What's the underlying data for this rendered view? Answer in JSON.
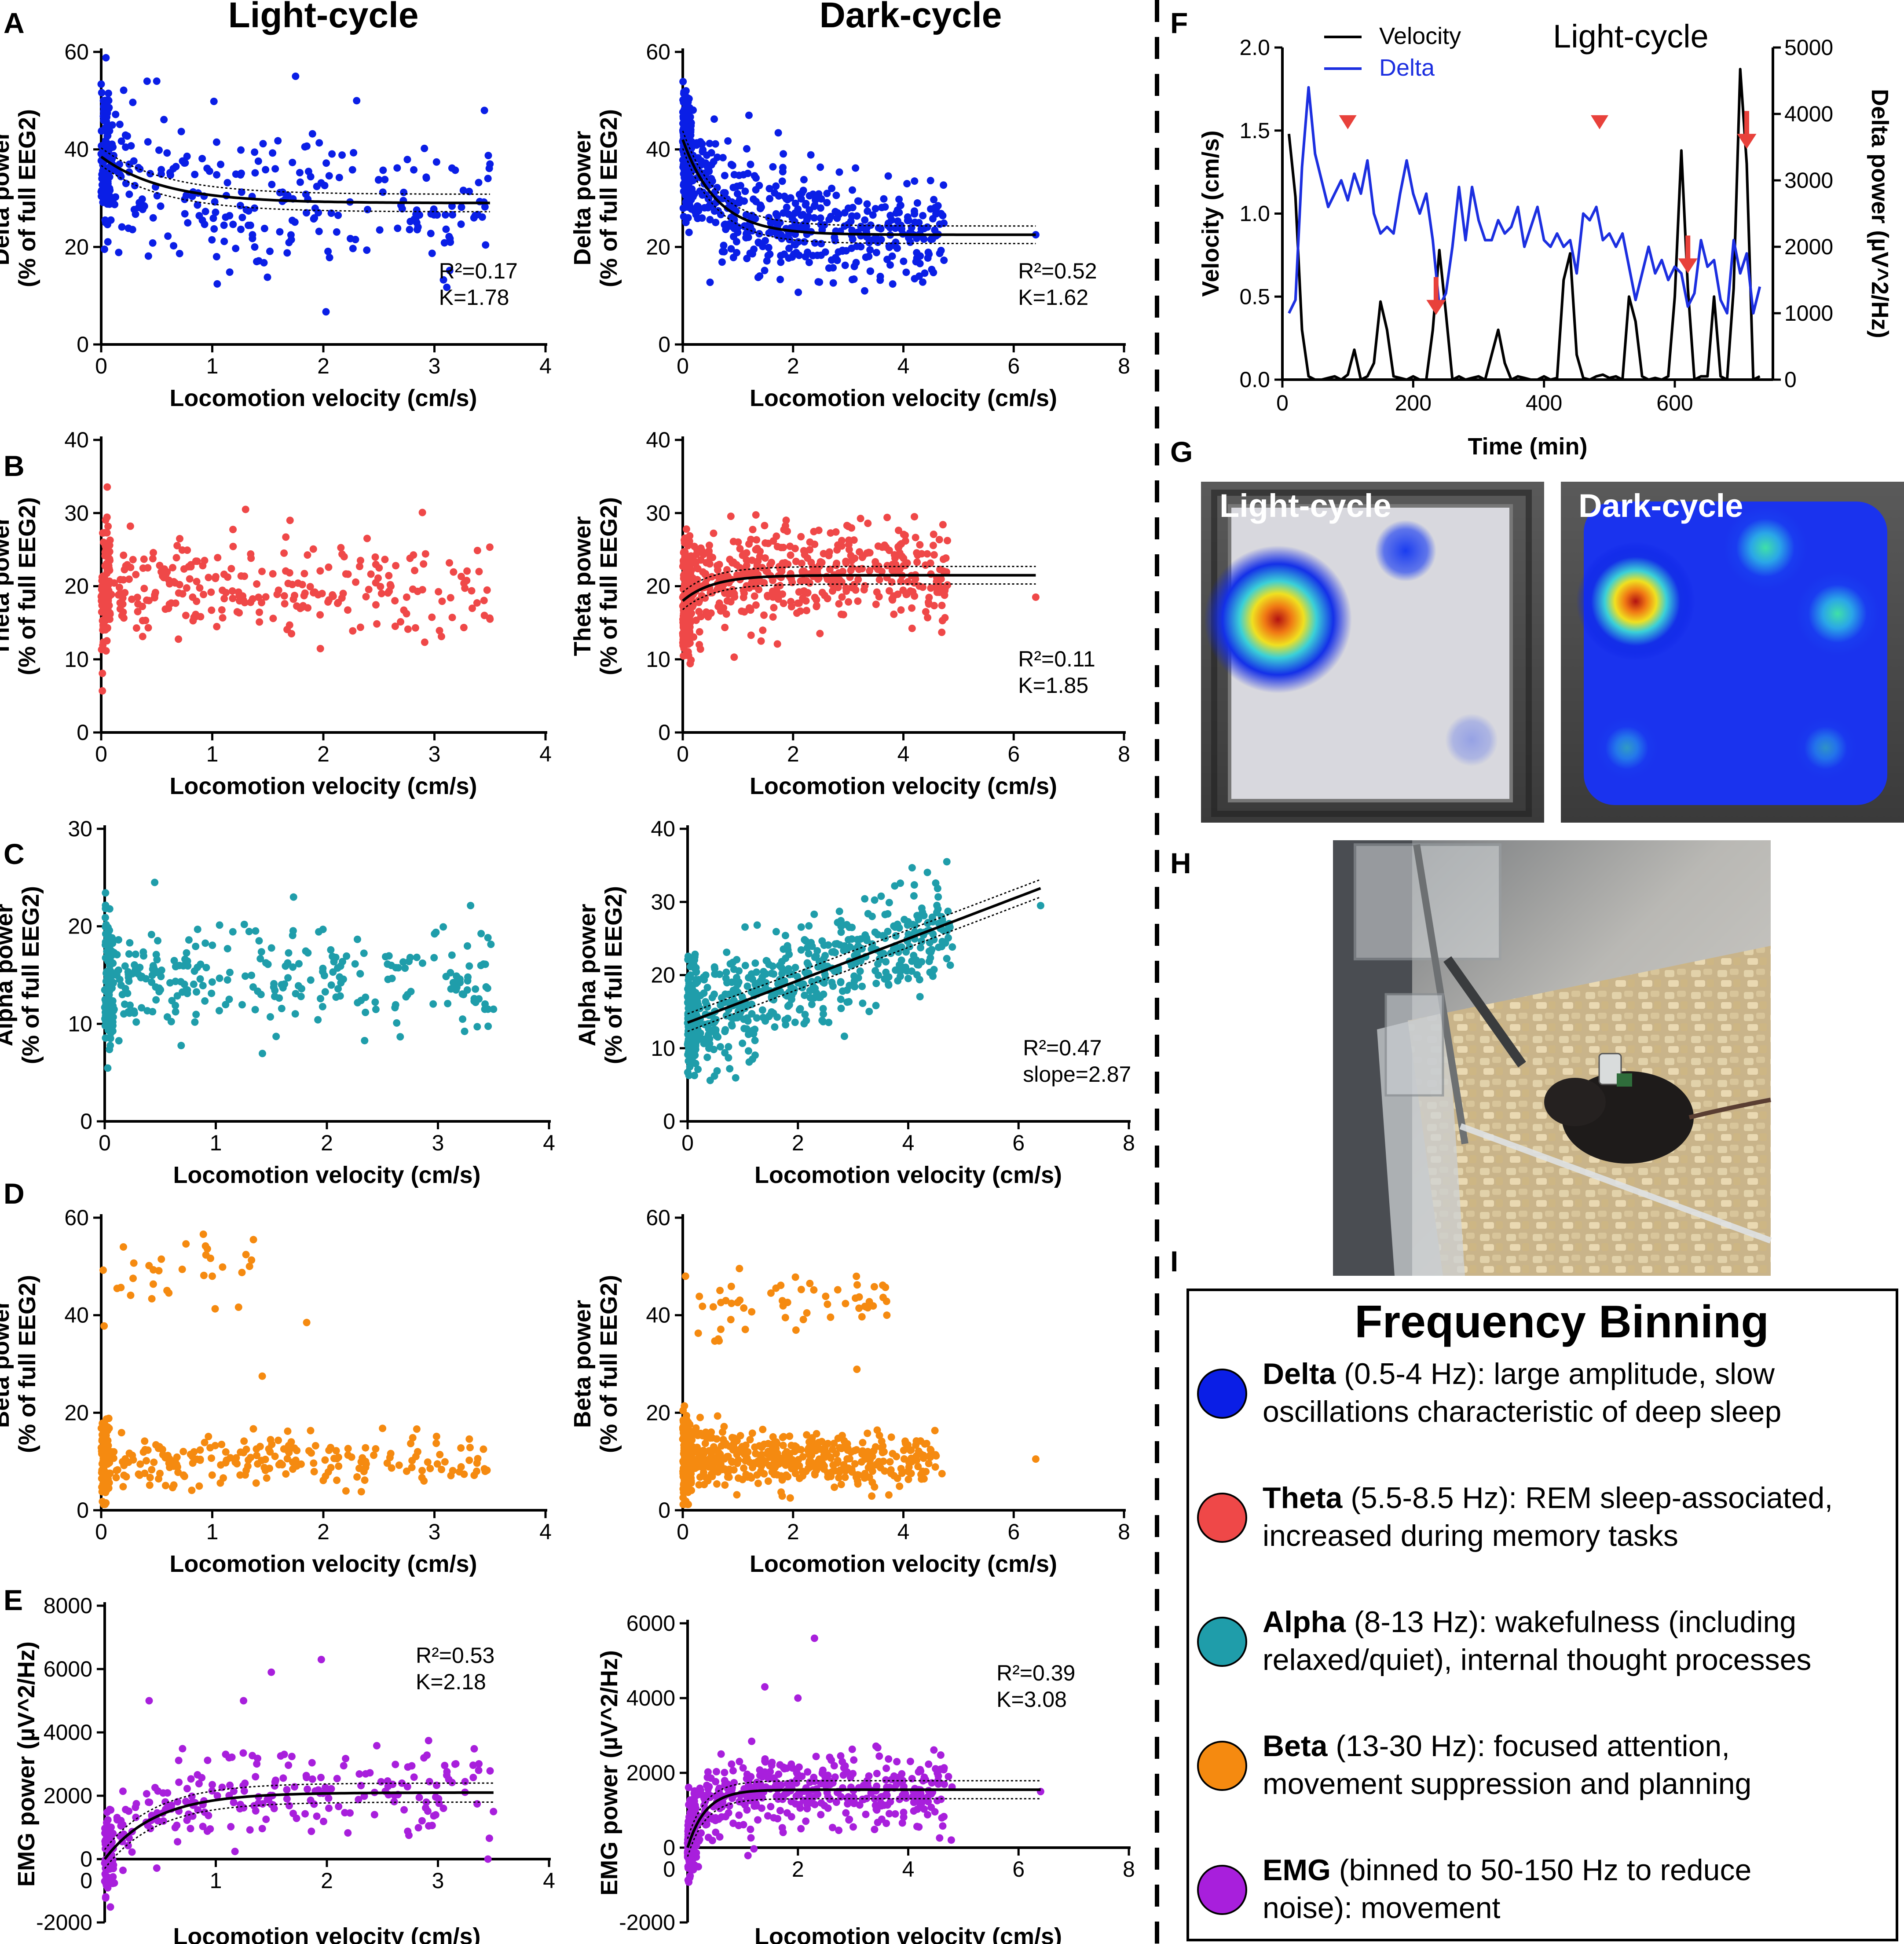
{
  "columns": {
    "light": "Light-cycle",
    "dark": "Dark-cycle"
  },
  "panel_letters": {
    "A": "A",
    "B": "B",
    "C": "C",
    "D": "D",
    "E": "E",
    "F": "F",
    "G": "G",
    "H": "H",
    "I": "I"
  },
  "colors": {
    "delta": "#0a1ee6",
    "theta": "#ef4848",
    "alpha": "#1f9daa",
    "beta": "#f58a10",
    "emg": "#a81fdc",
    "arrow": "#e8413b"
  },
  "chart_data": [
    {
      "id": "A_light",
      "type": "scatter",
      "panel": "A",
      "column": "Light-cycle",
      "color_key": "delta",
      "title": "Light-cycle",
      "xlabel": "Locomotion velocity (cm/s)",
      "ylabel": [
        "Delta power",
        "(% of full EEG2)"
      ],
      "xlim": [
        0,
        4
      ],
      "ylim": [
        0,
        60
      ],
      "xticks": [
        0,
        1,
        2,
        3,
        4
      ],
      "yticks": [
        0,
        20,
        40,
        60
      ],
      "fit": {
        "kind": "exp",
        "y0": 38.5,
        "plateau": 29,
        "K": 1.78
      },
      "annotation": [
        "R²=0.17",
        "K=1.78"
      ],
      "seed": 11,
      "n": 360,
      "cloud": {
        "xmax": 3.5,
        "spread": 7.5
      },
      "sample_points": [
        [
          0.02,
          50
        ],
        [
          0.1,
          45
        ],
        [
          0.5,
          54
        ],
        [
          1.75,
          55
        ],
        [
          2.3,
          50
        ],
        [
          3.45,
          48
        ],
        [
          3.5,
          37
        ],
        [
          1.4,
          17
        ]
      ]
    },
    {
      "id": "A_dark",
      "type": "scatter",
      "panel": "A",
      "column": "Dark-cycle",
      "color_key": "delta",
      "title": "Dark-cycle",
      "xlabel": "Locomotion velocity (cm/s)",
      "ylabel": [
        "Delta power",
        "(% of full EEG2)"
      ],
      "xlim": [
        0,
        8
      ],
      "ylim": [
        0,
        60
      ],
      "xticks": [
        0,
        2,
        4,
        6,
        8
      ],
      "yticks": [
        0,
        20,
        40,
        60
      ],
      "fit": {
        "kind": "exp",
        "y0": 42,
        "plateau": 22.5,
        "K": 1.62
      },
      "annotation": [
        "R²=0.52",
        "K=1.62"
      ],
      "seed": 12,
      "n": 700,
      "cloud": {
        "xmax": 4.8,
        "spread": 6
      },
      "sample_points": [
        [
          0.05,
          50
        ],
        [
          1.2,
          47
        ],
        [
          4.6,
          28
        ],
        [
          6.4,
          22.5
        ]
      ]
    },
    {
      "id": "B_light",
      "type": "scatter",
      "panel": "B",
      "column": "Light-cycle",
      "color_key": "theta",
      "xlabel": "Locomotion velocity (cm/s)",
      "ylabel": [
        "Theta power",
        "(% of full EEG2)"
      ],
      "xlim": [
        0,
        4
      ],
      "ylim": [
        0,
        40
      ],
      "xticks": [
        0,
        1,
        2,
        3,
        4
      ],
      "yticks": [
        0,
        10,
        20,
        30,
        40
      ],
      "fit": null,
      "annotation": [],
      "seed": 21,
      "n": 360,
      "cloud": {
        "xmax": 3.5,
        "spread": 3.2,
        "base": 19.5
      },
      "sample_points": [
        [
          1.3,
          30.5
        ],
        [
          1.7,
          29
        ],
        [
          2.75,
          18.5
        ],
        [
          3.45,
          16
        ],
        [
          3.5,
          15.5
        ]
      ]
    },
    {
      "id": "B_dark",
      "type": "scatter",
      "panel": "B",
      "column": "Dark-cycle",
      "color_key": "theta",
      "xlabel": "Locomotion velocity (cm/s)",
      "ylabel": [
        "Theta power",
        "(% of full EEG2)"
      ],
      "xlim": [
        0,
        8
      ],
      "ylim": [
        0,
        40
      ],
      "xticks": [
        0,
        2,
        4,
        6,
        8
      ],
      "yticks": [
        0,
        10,
        20,
        30,
        40
      ],
      "fit": {
        "kind": "exprise",
        "y0": 18,
        "plateau": 21.5,
        "K": 1.85
      },
      "annotation": [
        "R²=0.11",
        "K=1.85"
      ],
      "seed": 22,
      "n": 700,
      "cloud": {
        "xmax": 4.8,
        "spread": 3.3,
        "base": 21
      },
      "sample_points": [
        [
          4.2,
          29.5
        ],
        [
          6.4,
          18.5
        ],
        [
          0.3,
          12
        ]
      ]
    },
    {
      "id": "C_light",
      "type": "scatter",
      "panel": "C",
      "column": "Light-cycle",
      "color_key": "alpha",
      "xlabel": "Locomotion velocity (cm/s)",
      "ylabel": [
        "Alpha power",
        "(% of full EEG2)"
      ],
      "xlim": [
        0,
        4
      ],
      "ylim": [
        0,
        30
      ],
      "xticks": [
        0,
        1,
        2,
        3,
        4
      ],
      "yticks": [
        0,
        10,
        20,
        30
      ],
      "fit": null,
      "annotation": [],
      "seed": 31,
      "n": 360,
      "cloud": {
        "xmax": 3.5,
        "spread": 2.6,
        "base": 14.5
      },
      "sample_points": [
        [
          0.45,
          24.5
        ],
        [
          1.7,
          23
        ],
        [
          2.75,
          16.8
        ],
        [
          3.45,
          11.5
        ],
        [
          3.5,
          11.5
        ]
      ]
    },
    {
      "id": "C_dark",
      "type": "scatter",
      "panel": "C",
      "column": "Dark-cycle",
      "color_key": "alpha",
      "xlabel": "Locomotion velocity (cm/s)",
      "ylabel": [
        "Alpha power",
        "(% of full EEG2)"
      ],
      "xlim": [
        0,
        8
      ],
      "ylim": [
        0,
        40
      ],
      "xticks": [
        0,
        2,
        4,
        6,
        8
      ],
      "yticks": [
        0,
        10,
        20,
        30,
        40
      ],
      "fit": {
        "kind": "linear",
        "intercept": 13.5,
        "slope": 2.87
      },
      "annotation": [
        "R²=0.47",
        "slope=2.87"
      ],
      "seed": 32,
      "n": 700,
      "cloud": {
        "xmax": 4.8,
        "spread": 3.6
      },
      "sample_points": [
        [
          4.7,
          35.5
        ],
        [
          6.4,
          29.5
        ],
        [
          0.05,
          20
        ]
      ]
    },
    {
      "id": "D_light",
      "type": "scatter",
      "panel": "D",
      "column": "Light-cycle",
      "color_key": "beta",
      "xlabel": "Locomotion velocity (cm/s)",
      "ylabel": [
        "Beta power",
        "(% of full EEG2)"
      ],
      "xlim": [
        0,
        4
      ],
      "ylim": [
        0,
        60
      ],
      "xticks": [
        0,
        1,
        2,
        3,
        4
      ],
      "yticks": [
        0,
        20,
        40,
        60
      ],
      "fit": null,
      "annotation": [],
      "seed": 41,
      "n": 320,
      "cloud": {
        "xmax": 3.5,
        "spread": 2.6,
        "base": 10
      },
      "sample_points": [
        [
          0.2,
          54
        ],
        [
          1.0,
          48
        ],
        [
          1.85,
          38.5
        ],
        [
          1.45,
          27.5
        ],
        [
          2.75,
          8
        ],
        [
          3.45,
          8.5
        ]
      ]
    },
    {
      "id": "D_dark",
      "type": "scatter",
      "panel": "D",
      "column": "Dark-cycle",
      "color_key": "beta",
      "xlabel": "Locomotion velocity (cm/s)",
      "ylabel": [
        "Beta power",
        "(% of full EEG2)"
      ],
      "xlim": [
        0,
        8
      ],
      "ylim": [
        0,
        60
      ],
      "xticks": [
        0,
        2,
        4,
        6,
        8
      ],
      "yticks": [
        0,
        20,
        40,
        60
      ],
      "fit": null,
      "annotation": [],
      "seed": 42,
      "n": 620,
      "cloud": {
        "xmax": 4.6,
        "spread": 2.8,
        "base": 10.5
      },
      "sample_points": [
        [
          0.05,
          48
        ],
        [
          3.7,
          40
        ],
        [
          6.4,
          10.5
        ],
        [
          4.7,
          7.5
        ]
      ]
    },
    {
      "id": "E_light",
      "type": "scatter",
      "panel": "E",
      "column": "Light-cycle",
      "color_key": "emg",
      "xlabel": "Locomotion velocity (cm/s)",
      "ylabel": [
        "EMG power (µV^2/Hz)"
      ],
      "xlim": [
        0,
        4
      ],
      "ylim": [
        -2000,
        8000
      ],
      "xticks": [
        1,
        2,
        3,
        4
      ],
      "yticks": [
        -2000,
        0,
        2000,
        4000,
        6000,
        8000
      ],
      "fit": {
        "kind": "exprise",
        "y0": 0,
        "plateau": 2100,
        "K": 2.18
      },
      "annotation": [
        "R²=0.53",
        "K=2.18"
      ],
      "seed": 51,
      "n": 300,
      "cloud": {
        "xmax": 3.5,
        "spread": 700
      },
      "sample_points": [
        [
          1.5,
          5900
        ],
        [
          1.95,
          6300
        ],
        [
          1.25,
          5000
        ],
        [
          0.4,
          5000
        ],
        [
          3.5,
          1500
        ],
        [
          3.45,
          0
        ]
      ]
    },
    {
      "id": "E_dark",
      "type": "scatter",
      "panel": "E",
      "column": "Dark-cycle",
      "color_key": "emg",
      "xlabel": "Locomotion velocity (cm/s)",
      "ylabel": [
        "EMG power (µV^2/Hz)"
      ],
      "xlim": [
        0,
        8
      ],
      "ylim": [
        -2000,
        6000
      ],
      "xticks": [
        2,
        4,
        6,
        8
      ],
      "yticks": [
        -2000,
        0,
        2000,
        4000,
        6000
      ],
      "fit": {
        "kind": "exprise",
        "y0": 0,
        "plateau": 1550,
        "K": 3.08
      },
      "annotation": [
        "R²=0.39",
        "K=3.08"
      ],
      "seed": 52,
      "n": 600,
      "cloud": {
        "xmax": 4.8,
        "spread": 500
      },
      "sample_points": [
        [
          2.3,
          5600
        ],
        [
          1.4,
          4300
        ],
        [
          2.0,
          4000
        ],
        [
          6.4,
          1500
        ]
      ]
    },
    {
      "id": "F",
      "type": "line",
      "panel": "F",
      "title": "Light-cycle",
      "xlabel": "Time (min)",
      "ylabel_left": "Velocity (cm/s)",
      "ylabel_right": "Delta power (µV^2/Hz)",
      "xlim": [
        0,
        750
      ],
      "ylim_left": [
        0,
        2.0
      ],
      "ylim_right": [
        0,
        5000
      ],
      "xticks": [
        0,
        200,
        400,
        600
      ],
      "yticks_left": [
        "0.0",
        "0.5",
        "1.0",
        "1.5",
        "2.0"
      ],
      "yticks_right": [
        0,
        1000,
        2000,
        3000,
        4000,
        5000
      ],
      "legend": [
        "Velocity",
        "Delta"
      ],
      "series": [
        {
          "name": "Velocity",
          "axis": "left",
          "color": "#000000",
          "x": [
            10,
            20,
            30,
            40,
            50,
            60,
            70,
            80,
            90,
            100,
            110,
            120,
            130,
            140,
            150,
            160,
            170,
            180,
            190,
            200,
            210,
            220,
            230,
            240,
            250,
            260,
            270,
            280,
            290,
            300,
            310,
            320,
            330,
            340,
            350,
            360,
            370,
            380,
            390,
            400,
            410,
            420,
            430,
            440,
            450,
            460,
            470,
            480,
            490,
            500,
            510,
            520,
            530,
            540,
            550,
            560,
            570,
            580,
            590,
            600,
            610,
            620,
            630,
            640,
            650,
            660,
            670,
            680,
            690,
            700,
            710,
            720,
            730
          ],
          "y": [
            1.48,
            1.1,
            0.3,
            0.02,
            0.0,
            0.0,
            0.01,
            0.02,
            0.0,
            0.03,
            0.18,
            0.0,
            0.02,
            0.1,
            0.47,
            0.3,
            0.02,
            0.01,
            0.0,
            0.02,
            0.0,
            0.0,
            0.3,
            0.78,
            0.4,
            0.0,
            0.02,
            0.0,
            0.01,
            0.02,
            0.0,
            0.15,
            0.3,
            0.1,
            0.0,
            0.02,
            0.01,
            0.0,
            0.0,
            0.02,
            0.0,
            0.01,
            0.6,
            0.76,
            0.15,
            0.01,
            0.0,
            0.02,
            0.03,
            0.01,
            0.02,
            0.0,
            0.5,
            0.35,
            0.02,
            0.0,
            0.01,
            0.0,
            0.02,
            0.5,
            1.38,
            0.55,
            0.0,
            0.02,
            0.02,
            0.5,
            0.02,
            0.0,
            0.55,
            1.87,
            1.3,
            0.0,
            0.02
          ]
        },
        {
          "name": "Delta",
          "axis": "right",
          "color": "#1c2fe0",
          "x": [
            10,
            20,
            30,
            40,
            50,
            60,
            70,
            80,
            90,
            100,
            110,
            120,
            130,
            140,
            150,
            160,
            170,
            180,
            190,
            200,
            210,
            220,
            230,
            240,
            250,
            260,
            270,
            280,
            290,
            300,
            310,
            320,
            330,
            340,
            350,
            360,
            370,
            380,
            390,
            400,
            410,
            420,
            430,
            440,
            450,
            460,
            470,
            480,
            490,
            500,
            510,
            520,
            530,
            540,
            550,
            560,
            570,
            580,
            590,
            600,
            610,
            620,
            630,
            640,
            650,
            660,
            670,
            680,
            690,
            700,
            710,
            720,
            730
          ],
          "y": [
            1000,
            1200,
            3200,
            4400,
            3400,
            3000,
            2600,
            2800,
            3000,
            2700,
            3100,
            2800,
            3300,
            2500,
            2200,
            2300,
            2200,
            2800,
            3300,
            2800,
            2500,
            2800,
            2100,
            1100,
            1300,
            2000,
            2900,
            2100,
            2900,
            2400,
            2100,
            2100,
            2400,
            2200,
            2300,
            2600,
            2000,
            2300,
            2600,
            2100,
            2000,
            2200,
            2000,
            2100,
            1600,
            2500,
            2400,
            2600,
            2100,
            2200,
            2000,
            2200,
            1700,
            1200,
            1600,
            2000,
            1600,
            1800,
            1500,
            1700,
            1600,
            1100,
            1300,
            2100,
            1700,
            1800,
            1200,
            1000,
            2100,
            1600,
            1900,
            1000,
            1400
          ]
        }
      ],
      "markers": [
        {
          "kind": "arrowhead",
          "x": 100,
          "label": ""
        },
        {
          "kind": "arrow",
          "x": 235,
          "label": ""
        },
        {
          "kind": "arrowhead",
          "x": 485,
          "label": ""
        },
        {
          "kind": "arrow",
          "x": 620,
          "label": ""
        },
        {
          "kind": "arrow",
          "x": 710,
          "label": ""
        }
      ]
    }
  ],
  "heatmaps": {
    "light": "Light-cycle",
    "dark": "Dark-cycle"
  },
  "legend_box": {
    "title": "Frequency Binning",
    "items": [
      {
        "key": "delta",
        "name": "Delta",
        "desc_line1": "(0.5-4 Hz): large amplitude, slow",
        "desc_line2": "oscillations characteristic of deep sleep"
      },
      {
        "key": "theta",
        "name": "Theta",
        "desc_line1": "(5.5-8.5 Hz): REM sleep-associated,",
        "desc_line2": "increased during memory tasks"
      },
      {
        "key": "alpha",
        "name": "Alpha",
        "desc_line1": "(8-13 Hz): wakefulness (including",
        "desc_line2": "relaxed/quiet), internal thought processes"
      },
      {
        "key": "beta",
        "name": "Beta",
        "desc_line1": "(13-30 Hz): focused attention,",
        "desc_line2": "movement suppression and planning"
      },
      {
        "key": "emg",
        "name": "EMG",
        "desc_line1": "(binned to 50-150 Hz to reduce",
        "desc_line2": "noise): movement"
      }
    ]
  }
}
